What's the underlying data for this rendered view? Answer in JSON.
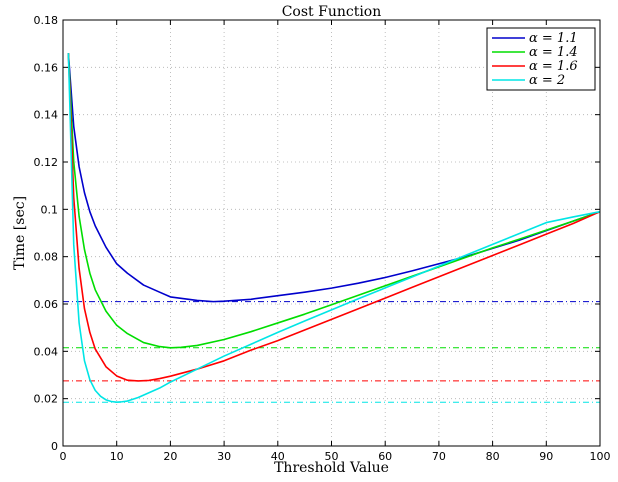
{
  "chart_data": {
    "type": "line",
    "title": "Cost Function",
    "xlabel": "Threshold Value",
    "ylabel": "Time [sec]",
    "xlim": [
      0,
      100
    ],
    "ylim": [
      0,
      0.18
    ],
    "xticks": [
      0,
      10,
      20,
      30,
      40,
      50,
      60,
      70,
      80,
      90,
      100
    ],
    "yticks": [
      0,
      0.02,
      0.04,
      0.06,
      0.08,
      0.1,
      0.12,
      0.14,
      0.16,
      0.18
    ],
    "xtick_labels": [
      "0",
      "10",
      "20",
      "30",
      "40",
      "50",
      "60",
      "70",
      "80",
      "90",
      "100"
    ],
    "ytick_labels": [
      "0",
      "0.02",
      "0.04",
      "0.06",
      "0.08",
      "0.1",
      "0.12",
      "0.14",
      "0.16",
      "0.18"
    ],
    "grid": true,
    "legend_position": "top-right",
    "series": [
      {
        "name": "α = 1.1",
        "color": "#0000cc",
        "minimum": 0.061,
        "x": [
          1,
          2,
          3,
          4,
          5,
          6,
          8,
          10,
          12,
          15,
          18,
          20,
          25,
          28,
          30,
          35,
          40,
          45,
          50,
          55,
          60,
          65,
          70,
          75,
          80,
          85,
          90,
          95,
          100
        ],
        "y": [
          0.166,
          0.135,
          0.118,
          0.107,
          0.099,
          0.093,
          0.084,
          0.077,
          0.073,
          0.068,
          0.065,
          0.063,
          0.0615,
          0.061,
          0.0612,
          0.062,
          0.0635,
          0.065,
          0.0667,
          0.0688,
          0.0712,
          0.074,
          0.077,
          0.08,
          0.0835,
          0.087,
          0.091,
          0.095,
          0.099
        ]
      },
      {
        "name": "α = 1.4",
        "color": "#00dd00",
        "minimum": 0.0415,
        "x": [
          1,
          2,
          3,
          4,
          5,
          6,
          8,
          10,
          12,
          15,
          18,
          20,
          22,
          25,
          30,
          35,
          40,
          45,
          50,
          55,
          60,
          65,
          70,
          75,
          80,
          85,
          90,
          95,
          100
        ],
        "y": [
          0.166,
          0.12,
          0.097,
          0.083,
          0.073,
          0.066,
          0.057,
          0.051,
          0.0475,
          0.0437,
          0.042,
          0.0415,
          0.0417,
          0.0425,
          0.045,
          0.0483,
          0.052,
          0.0557,
          0.0597,
          0.0637,
          0.0677,
          0.0717,
          0.0757,
          0.0797,
          0.0837,
          0.0874,
          0.0912,
          0.095,
          0.099
        ]
      },
      {
        "name": "α = 1.6",
        "color": "#ff0000",
        "minimum": 0.0275,
        "x": [
          1,
          2,
          3,
          4,
          5,
          6,
          8,
          10,
          12,
          14,
          16,
          18,
          20,
          25,
          30,
          35,
          40,
          45,
          50,
          55,
          60,
          65,
          70,
          75,
          80,
          85,
          90,
          95,
          100
        ],
        "y": [
          0.166,
          0.105,
          0.075,
          0.058,
          0.048,
          0.041,
          0.0335,
          0.0296,
          0.0278,
          0.0275,
          0.0277,
          0.0285,
          0.0295,
          0.0325,
          0.036,
          0.0405,
          0.0445,
          0.049,
          0.0535,
          0.058,
          0.0625,
          0.067,
          0.0715,
          0.076,
          0.0805,
          0.085,
          0.0895,
          0.094,
          0.099
        ]
      },
      {
        "name": "α = 2",
        "color": "#00e5e5",
        "minimum": 0.0185,
        "x": [
          1,
          2,
          3,
          4,
          5,
          6,
          7,
          8,
          9,
          10,
          11,
          12,
          14,
          16,
          18,
          20,
          25,
          30,
          35,
          40,
          45,
          50,
          55,
          60,
          65,
          70,
          75,
          80,
          85,
          90,
          95,
          100
        ],
        "y": [
          0.166,
          0.085,
          0.052,
          0.036,
          0.028,
          0.0235,
          0.021,
          0.0195,
          0.0188,
          0.0185,
          0.0187,
          0.019,
          0.0205,
          0.0225,
          0.0245,
          0.027,
          0.0325,
          0.038,
          0.043,
          0.048,
          0.0528,
          0.0575,
          0.0622,
          0.0668,
          0.0714,
          0.076,
          0.0806,
          0.0852,
          0.0898,
          0.0944,
          0.0968,
          0.099
        ]
      }
    ]
  }
}
